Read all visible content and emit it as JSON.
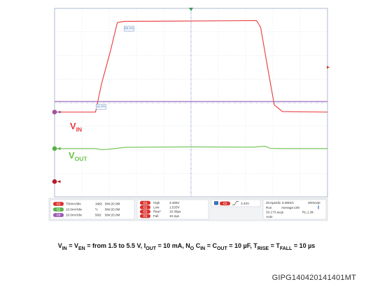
{
  "chart_data": {
    "type": "line",
    "title": "",
    "xlabel": "",
    "ylabel": "",
    "time_per_div": "20.0µs/div",
    "grid": true,
    "xlim": [
      0,
      10
    ],
    "ylim": [
      0,
      8
    ],
    "series": [
      {
        "name": "",
        "label_main": "V",
        "label_sub": "IN",
        "color": "#e8393b",
        "points": [
          [
            0,
            3.6
          ],
          [
            1.5,
            3.6
          ],
          [
            1.72,
            4.8
          ],
          [
            2.05,
            6.2
          ],
          [
            2.3,
            7.4
          ],
          [
            2.55,
            7.45
          ],
          [
            7.4,
            7.48
          ],
          [
            7.55,
            7.2
          ],
          [
            7.85,
            5.2
          ],
          [
            8.05,
            3.9
          ],
          [
            8.35,
            3.62
          ],
          [
            10,
            3.6
          ]
        ]
      },
      {
        "name": "",
        "label_main": "V",
        "label_sub": "OUT",
        "color": "#6cc24a",
        "points": [
          [
            0,
            2.05
          ],
          [
            1.5,
            2.05
          ],
          [
            1.75,
            2.0
          ],
          [
            2.1,
            2.04
          ],
          [
            2.6,
            2.1
          ],
          [
            3.4,
            2.11
          ],
          [
            5.0,
            2.12
          ],
          [
            7.3,
            2.11
          ],
          [
            7.7,
            2.15
          ],
          [
            7.9,
            2.06
          ],
          [
            8.4,
            2.05
          ],
          [
            10,
            2.05
          ]
        ]
      },
      {
        "name": "",
        "color": "#a46bbf",
        "points": [
          [
            0,
            4.05
          ],
          [
            10,
            4.05
          ]
        ]
      }
    ],
    "cursor_tags": [
      {
        "text": "90.0%",
        "x": 2.55,
        "y": 7.1
      },
      {
        "text": "10.0%",
        "x": 1.52,
        "y": 3.78
      }
    ],
    "channels": [
      {
        "badge": "C1",
        "color": "#d9322e",
        "scale": "700mV/div",
        "coupling": "1MΩ",
        "bw": "BW:20.0M"
      },
      {
        "badge": "C2",
        "color": "#56b147",
        "scale": "10.0mV/div",
        "coupling": "½",
        "bw": "BW:20.0M"
      },
      {
        "badge": "C3",
        "color": "#9b59b6",
        "scale": "10.0mV/div",
        "coupling": "50Ω",
        "bw": "BW:20.0M"
      }
    ],
    "measurements": [
      {
        "label": "High",
        "value": "3.468V"
      },
      {
        "label": "Low",
        "value": "1.533V"
      },
      {
        "label": "Rise*",
        "value": "10.38µs"
      },
      {
        "label": "Fall",
        "value": "10.2µs"
      }
    ],
    "trigger": {
      "level": "3.43V"
    },
    "acquisition": {
      "timebase": "20.0µs/div",
      "rate": "5.0MS/s",
      "resolution": "200ns/pt",
      "state": "Run",
      "average": "Average:100",
      "acqs": "33 173 acqs",
      "rl": "RL:1.0k",
      "mode": "Auto"
    }
  },
  "caption": {
    "v1": "V",
    "v1_sub": "IN",
    "v2": "V",
    "v2_sub": "EN",
    "t1": " = from 1.5 to 5.5 V, I",
    "i_sub": "OUT",
    "t2": " = 10 mA, N",
    "n_sub": "O",
    "t3": " C",
    "cin_sub": "IN",
    "t4": " = C",
    "cout_sub": "OUT",
    "t5": " = 10 µF, T",
    "rise_sub": "RISE",
    "t6": " = T",
    "fall_sub": "FALL",
    "t7": " = 10 µs"
  },
  "figure_id": "GIPG140420141401MT"
}
